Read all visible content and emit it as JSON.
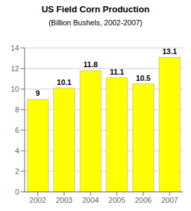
{
  "chart_data": {
    "type": "bar",
    "title": "US Field Corn Production",
    "subtitle": "(Billion Bushels, 2002-2007)",
    "categories": [
      "2002",
      "2003",
      "2004",
      "2005",
      "2006",
      "2007"
    ],
    "values": [
      9,
      10.1,
      11.8,
      11.1,
      10.5,
      13.1
    ],
    "color": "#FFFF00",
    "ylim": [
      0,
      14
    ],
    "yticks": [
      0,
      2,
      4,
      6,
      8,
      10,
      12,
      14
    ],
    "grid": true,
    "data_labels": true
  }
}
